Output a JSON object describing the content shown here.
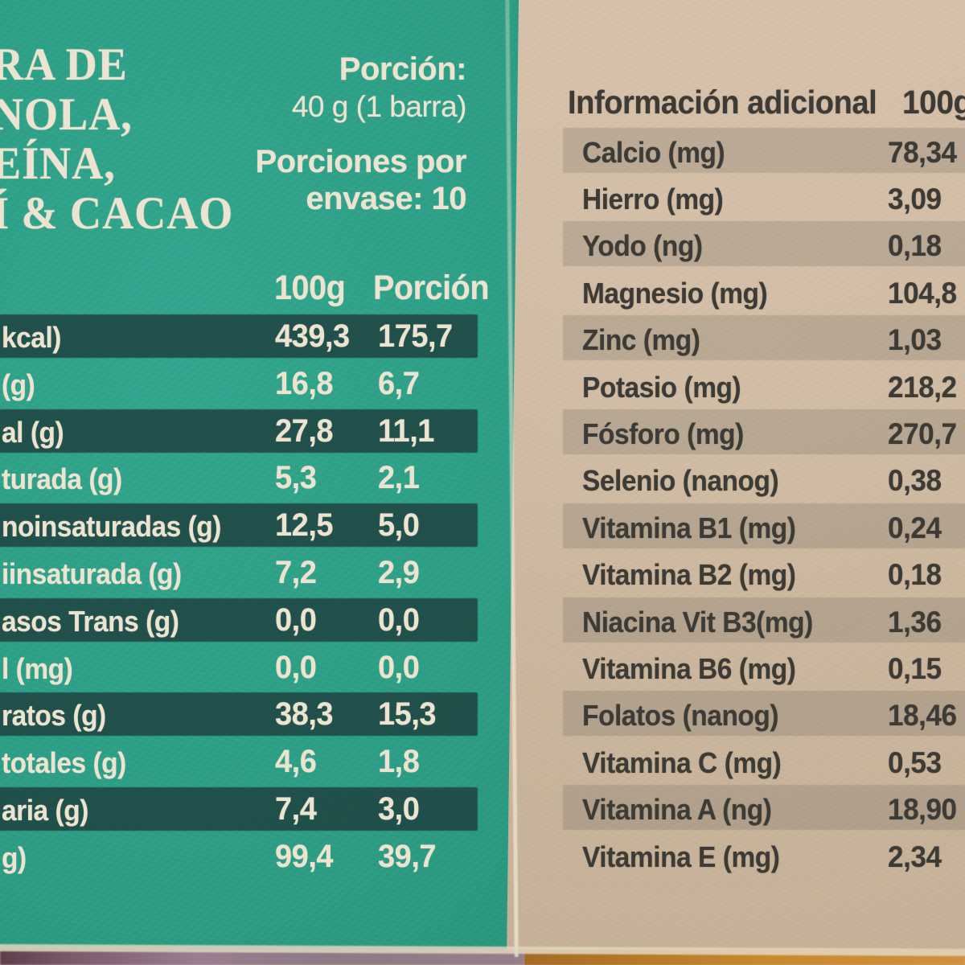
{
  "left_panel": {
    "title_lines": [
      "RA DE",
      "NOLA,",
      "EÍNA,",
      "Í & CACAO"
    ],
    "serving": {
      "porcion_label": "Porción:",
      "porcion_value": "40 g (1 barra)",
      "por_envase_line1": "Porciones por",
      "por_envase_line2": "envase: 10"
    },
    "col_headers": {
      "per100": "100g",
      "per_serving": "Porción"
    },
    "rows": [
      {
        "label": "kcal)",
        "per100": "439,3",
        "porcion": "175,7",
        "band": true
      },
      {
        "label": "(g)",
        "per100": "16,8",
        "porcion": "6,7",
        "band": false
      },
      {
        "label": "al (g)",
        "per100": "27,8",
        "porcion": "11,1",
        "band": true
      },
      {
        "label": "turada (g)",
        "per100": "5,3",
        "porcion": "2,1",
        "band": false
      },
      {
        "label": "noinsaturadas (g)",
        "per100": "12,5",
        "porcion": "5,0",
        "band": true
      },
      {
        "label": "iinsaturada (g)",
        "per100": "7,2",
        "porcion": "2,9",
        "band": false
      },
      {
        "label": "asos Trans (g)",
        "per100": "0,0",
        "porcion": "0,0",
        "band": true
      },
      {
        "label": "l (mg)",
        "per100": "0,0",
        "porcion": "0,0",
        "band": false
      },
      {
        "label": "ratos (g)",
        "per100": "38,3",
        "porcion": "15,3",
        "band": true
      },
      {
        "label": "totales (g)",
        "per100": "4,6",
        "porcion": "1,8",
        "band": false
      },
      {
        "label": "aria (g)",
        "per100": "7,4",
        "porcion": "3,0",
        "band": true
      },
      {
        "label": "g)",
        "per100": "99,4",
        "porcion": "39,7",
        "band": false
      }
    ]
  },
  "right_panel": {
    "title": "Información adicional",
    "col_header": "100g",
    "rows": [
      {
        "label": "Calcio (mg)",
        "value": "78,34",
        "band": true
      },
      {
        "label": "Hierro (mg)",
        "value": "3,09",
        "band": false
      },
      {
        "label": "Yodo (ng)",
        "value": "0,18",
        "band": true
      },
      {
        "label": "Magnesio (mg)",
        "value": "104,8",
        "band": false
      },
      {
        "label": "Zinc (mg)",
        "value": "1,03",
        "band": true
      },
      {
        "label": "Potasio (mg)",
        "value": "218,2",
        "band": false
      },
      {
        "label": "Fósforo (mg)",
        "value": "270,7",
        "band": true
      },
      {
        "label": "Selenio (nanog)",
        "value": "0,38",
        "band": false
      },
      {
        "label": "Vitamina B1 (mg)",
        "value": "0,24",
        "band": true
      },
      {
        "label": "Vitamina B2 (mg)",
        "value": "0,18",
        "band": false
      },
      {
        "label": "Niacina Vit B3(mg)",
        "value": "1,36",
        "band": true
      },
      {
        "label": "Vitamina B6 (mg)",
        "value": "0,15",
        "band": false
      },
      {
        "label": "Folatos (nanog)",
        "value": "18,46",
        "band": true
      },
      {
        "label": "Vitamina C (mg)",
        "value": "0,53",
        "band": false
      },
      {
        "label": "Vitamina A (ng)",
        "value": "18,90",
        "band": true
      },
      {
        "label": "Vitamina E (mg)",
        "value": "2,34",
        "band": false
      }
    ]
  },
  "colors": {
    "teal_panel": "#2e9f87",
    "teal_band": "#2d4f4d",
    "cream_text": "#ece4d0",
    "kraft_panel": "#cdb89f",
    "kraft_band": "#b2a793",
    "dark_text": "#3d3b35",
    "wood_table": "#c8892f",
    "purple_table": "#8d7083"
  }
}
